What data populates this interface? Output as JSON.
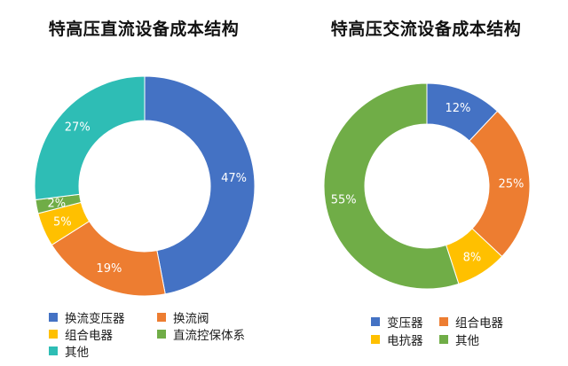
{
  "chart_data": [
    {
      "type": "pie",
      "variant": "donut",
      "title": "特高压直流设备成本结构",
      "categories": [
        "换流变压器",
        "换流阀",
        "组合电器",
        "直流控保体系",
        "其他"
      ],
      "values": [
        47,
        19,
        5,
        2,
        27
      ],
      "labels": [
        "47%",
        "19%",
        "5%",
        "2%",
        "27%"
      ],
      "colors": [
        "#4472C4",
        "#ED7D31",
        "#FFC000",
        "#70AD47",
        "#2EBDB5"
      ],
      "start_angle_deg": 0,
      "direction": "clockwise",
      "legend_position": "bottom"
    },
    {
      "type": "pie",
      "variant": "donut",
      "title": "特高压交流设备成本结构",
      "categories": [
        "变压器",
        "组合电器",
        "电抗器",
        "其他"
      ],
      "values": [
        12,
        25,
        8,
        55
      ],
      "labels": [
        "12%",
        "25%",
        "8%",
        "55%"
      ],
      "colors": [
        "#4472C4",
        "#ED7D31",
        "#FFC000",
        "#70AD47"
      ],
      "start_angle_deg": 0,
      "direction": "clockwise",
      "legend_position": "bottom"
    }
  ],
  "left": {
    "title": "特高压直流设备成本结构",
    "legend": [
      {
        "label": "换流变压器",
        "color": "#4472C4"
      },
      {
        "label": "换流阀",
        "color": "#ED7D31"
      },
      {
        "label": "组合电器",
        "color": "#FFC000"
      },
      {
        "label": "直流控保体系",
        "color": "#70AD47"
      },
      {
        "label": "其他",
        "color": "#2EBDB5"
      }
    ]
  },
  "right": {
    "title": "特高压交流设备成本结构",
    "legend": [
      {
        "label": "变压器",
        "color": "#4472C4"
      },
      {
        "label": "组合电器",
        "color": "#ED7D31"
      },
      {
        "label": "电抗器",
        "color": "#FFC000"
      },
      {
        "label": "其他",
        "color": "#70AD47"
      }
    ]
  }
}
